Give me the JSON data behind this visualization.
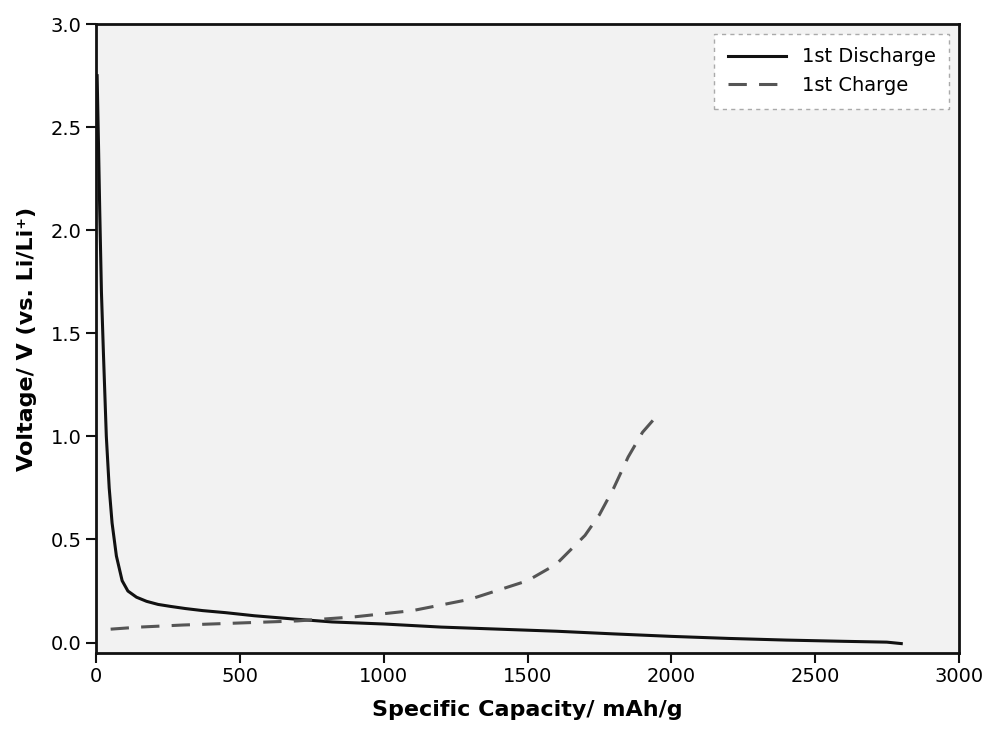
{
  "title": "",
  "xlabel": "Specific Capacity/ mAh/g",
  "ylabel": "Voltage/ V (vs. Li/Li⁺)",
  "xlim": [
    0,
    3000
  ],
  "ylim": [
    -0.05,
    3.0
  ],
  "xticks": [
    0,
    500,
    1000,
    1500,
    2000,
    2500,
    3000
  ],
  "yticks": [
    0.0,
    0.5,
    1.0,
    1.5,
    2.0,
    2.5,
    3.0
  ],
  "background_color": "#ffffff",
  "plot_bg_color": "#f2f2f2",
  "discharge_color": "#111111",
  "charge_color": "#555555",
  "discharge_label": "1st Discharge",
  "charge_label": "1st Charge",
  "legend_fontsize": 14,
  "axis_fontsize": 16,
  "tick_fontsize": 14,
  "line_width": 2.2,
  "discharge_x": [
    3,
    8,
    12,
    18,
    25,
    35,
    45,
    55,
    70,
    90,
    110,
    140,
    175,
    215,
    260,
    310,
    370,
    450,
    550,
    680,
    820,
    1000,
    1200,
    1400,
    1600,
    1800,
    2000,
    2200,
    2400,
    2600,
    2750,
    2800
  ],
  "discharge_y": [
    2.75,
    2.4,
    2.1,
    1.7,
    1.4,
    1.0,
    0.75,
    0.58,
    0.42,
    0.3,
    0.25,
    0.22,
    0.2,
    0.185,
    0.175,
    0.165,
    0.155,
    0.145,
    0.13,
    0.115,
    0.1,
    0.09,
    0.075,
    0.065,
    0.055,
    0.042,
    0.03,
    0.02,
    0.012,
    0.006,
    0.002,
    -0.005
  ],
  "charge_x": [
    50,
    150,
    300,
    500,
    700,
    900,
    1100,
    1300,
    1500,
    1600,
    1700,
    1750,
    1800,
    1850,
    1900,
    1950
  ],
  "charge_y": [
    0.065,
    0.075,
    0.085,
    0.095,
    0.105,
    0.125,
    0.155,
    0.21,
    0.3,
    0.38,
    0.52,
    0.62,
    0.75,
    0.9,
    1.02,
    1.1
  ]
}
